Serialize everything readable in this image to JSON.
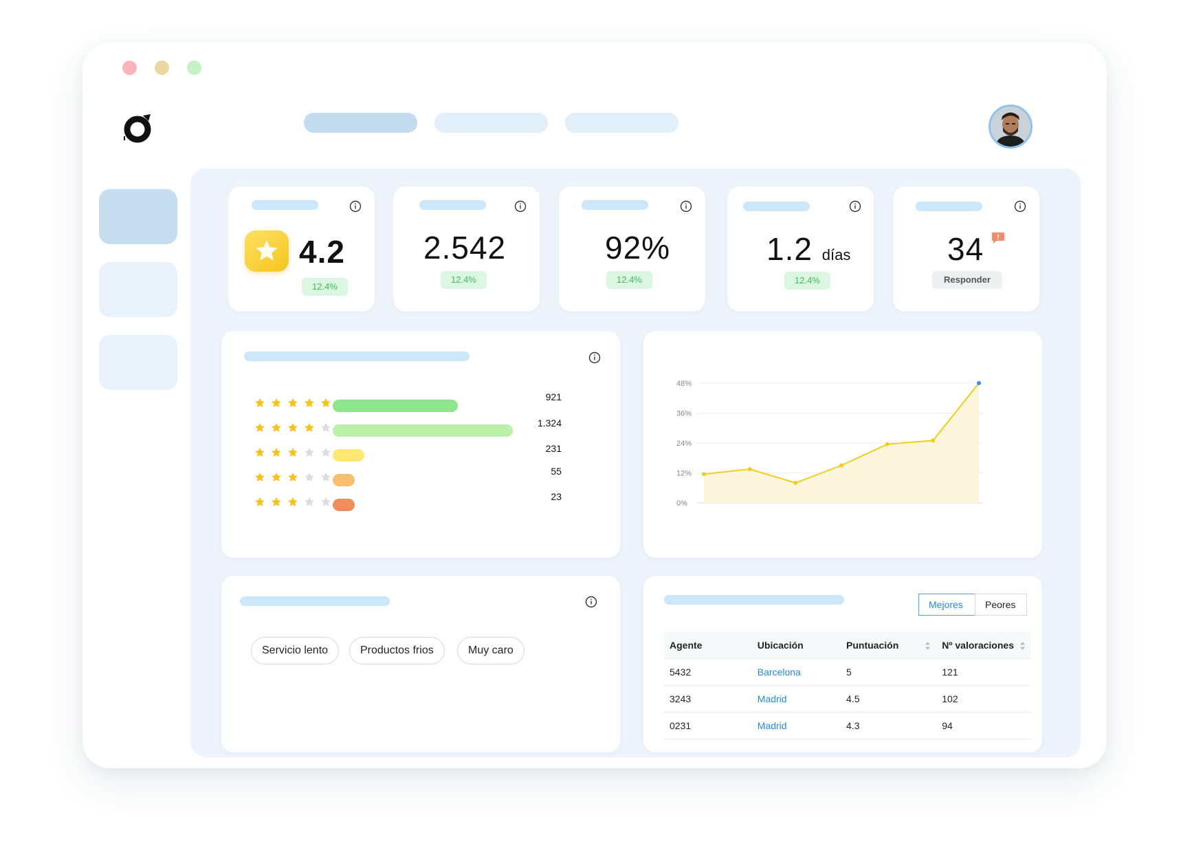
{
  "kpis": [
    {
      "value": "4.2",
      "badge": "12.4%"
    },
    {
      "value": "2.542",
      "badge": "12.4%"
    },
    {
      "value": "92%",
      "badge": "12.4%"
    },
    {
      "value": "1.2",
      "unit": "días",
      "badge": "12.4%"
    },
    {
      "value": "34",
      "button": "Responder"
    }
  ],
  "ratings": [
    {
      "stars": 5,
      "count": "921",
      "value": 921,
      "color": "#8ee68c"
    },
    {
      "stars": 4,
      "count": "1.324",
      "value": 1324,
      "color": "#baf0a8"
    },
    {
      "stars": 3,
      "count": "231",
      "value": 231,
      "color": "#fce872"
    },
    {
      "stars": 3,
      "count": "55",
      "value": 55,
      "color": "#f8be72"
    },
    {
      "stars": 3,
      "count": "23",
      "value": 23,
      "color": "#f08d5d"
    }
  ],
  "chart_data": {
    "type": "area",
    "title": "",
    "xlabel": "",
    "ylabel": "",
    "yticks": [
      "48%",
      "36%",
      "24%",
      "12%",
      "0%"
    ],
    "ylim": [
      0,
      48
    ],
    "grid": true,
    "x": [
      1,
      2,
      3,
      4,
      5,
      6,
      7
    ],
    "values": [
      11.5,
      13.5,
      8,
      15,
      23.5,
      25,
      48
    ],
    "line_color": "#f5cb1e",
    "fill_color": "#fdf6dc",
    "last_point_color": "#3a8ee6"
  },
  "tags": [
    "Servicio lento",
    "Productos frios",
    "Muy caro"
  ],
  "table": {
    "toggles": [
      "Mejores",
      "Peores"
    ],
    "columns": [
      "Agente",
      "Ubicación",
      "Puntuación",
      "Nº valoraciones"
    ],
    "rows": [
      {
        "agent": "5432",
        "location": "Barcelona",
        "score": "5",
        "reviews": "121"
      },
      {
        "agent": "3243",
        "location": "Madrid",
        "score": "4.5",
        "reviews": "102"
      },
      {
        "agent": "0231",
        "location": "Madrid",
        "score": "4.3",
        "reviews": "94"
      }
    ]
  }
}
